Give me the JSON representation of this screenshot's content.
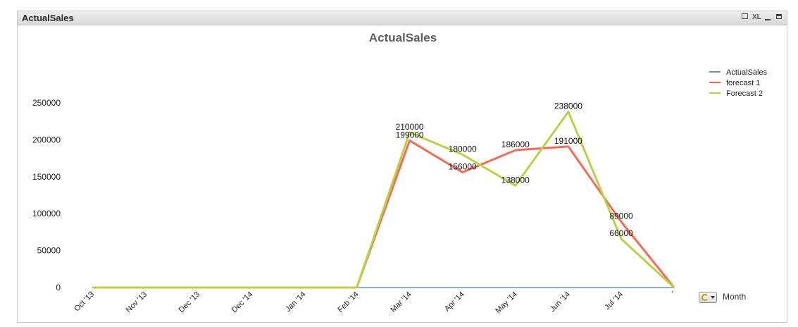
{
  "window": {
    "caption": "ActualSales",
    "xl_label": "XL"
  },
  "icons": [
    "print-icon",
    "xl-export-icon",
    "minimize-icon",
    "maximize-icon",
    "cycle-icon",
    "dropdown-icon"
  ],
  "dimension_label": "Month",
  "chart_data": {
    "type": "line",
    "title": "ActualSales",
    "categories": [
      "Oct '13",
      "Nov '13",
      "Dec '13",
      "Dec '14",
      "Jan '14",
      "Feb '14",
      "Mar '14",
      "Apr '14",
      "May '14",
      "Jun '14",
      "Jul '14",
      "'"
    ],
    "ylim": [
      0,
      250000
    ],
    "yticks": [
      0,
      50000,
      100000,
      150000,
      200000,
      250000
    ],
    "grid": false,
    "legend_position": "top-right",
    "series": [
      {
        "name": "ActualSales",
        "color": "#6f96b3",
        "values": [
          0,
          0,
          0,
          0,
          0,
          0,
          0,
          0,
          0,
          0,
          0,
          0
        ],
        "labels": [
          null,
          null,
          null,
          null,
          null,
          null,
          null,
          null,
          null,
          null,
          null,
          null
        ]
      },
      {
        "name": "forecast 1",
        "color": "#f26b57",
        "values": [
          0,
          0,
          0,
          0,
          0,
          0,
          199000,
          156000,
          186000,
          191000,
          89000,
          0
        ],
        "labels": [
          null,
          null,
          null,
          null,
          null,
          null,
          "199000",
          "156000",
          "186000",
          "191000",
          "89000",
          null
        ]
      },
      {
        "name": "Forecast 2",
        "color": "#b9d147",
        "values": [
          0,
          0,
          0,
          0,
          0,
          0,
          210000,
          180000,
          138000,
          238000,
          66000,
          0
        ],
        "labels": [
          null,
          null,
          null,
          null,
          null,
          null,
          "210000",
          "180000",
          "138000",
          "238000",
          "66000",
          null
        ]
      }
    ]
  }
}
